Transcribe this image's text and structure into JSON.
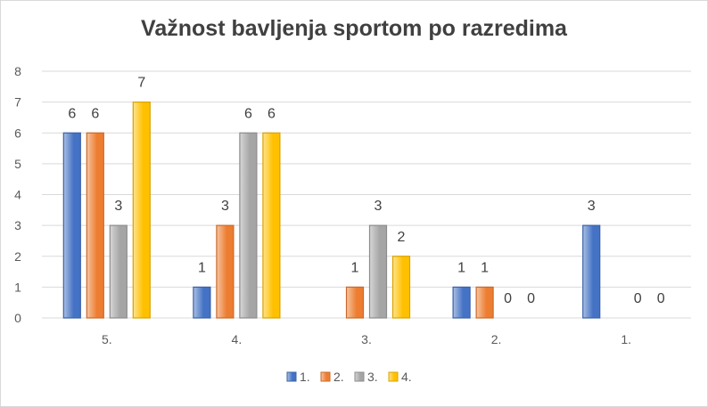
{
  "chart_data": {
    "type": "bar",
    "title": "Važnost bavljenja sportom po razredima",
    "xlabel": "",
    "ylabel": "",
    "ylim": [
      0,
      8
    ],
    "yticks": [
      0,
      1,
      2,
      3,
      4,
      5,
      6,
      7,
      8
    ],
    "grid": true,
    "legend_position": "bottom",
    "categories": [
      "5.",
      "4.",
      "3.",
      "2.",
      "1."
    ],
    "series": [
      {
        "name": "1.",
        "color": "#4472C4",
        "values": [
          6,
          1,
          null,
          1,
          3
        ]
      },
      {
        "name": "2.",
        "color": "#ED7D31",
        "values": [
          6,
          3,
          1,
          1,
          null
        ]
      },
      {
        "name": "3.",
        "color": "#A5A5A5",
        "values": [
          3,
          6,
          3,
          0,
          0
        ]
      },
      {
        "name": "4.",
        "color": "#FFC000",
        "values": [
          7,
          6,
          2,
          0,
          0
        ]
      }
    ]
  }
}
